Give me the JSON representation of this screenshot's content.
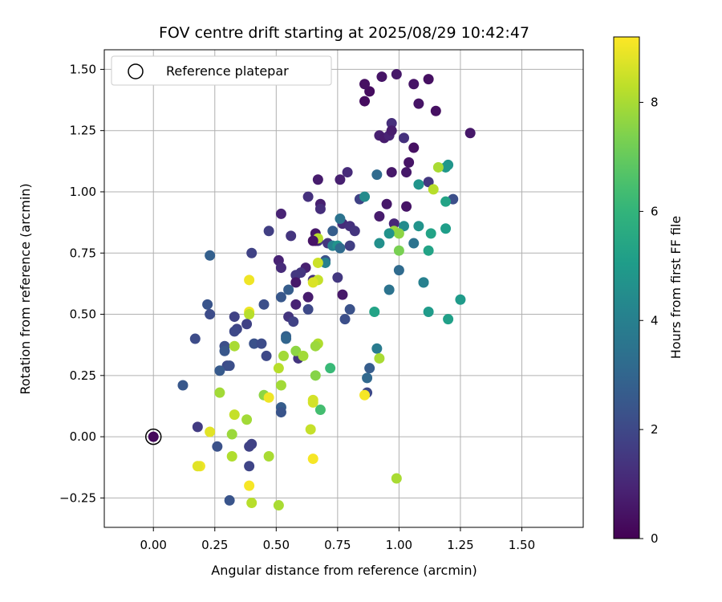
{
  "chart_data": {
    "type": "scatter",
    "title": "FOV centre drift starting at 2025/08/29 10:42:47",
    "xlabel": "Angular distance from reference (arcmin)",
    "ylabel": "Rotation from reference (arcmin)",
    "xlim": [
      -0.2,
      1.75
    ],
    "ylim": [
      -0.37,
      1.58
    ],
    "xticks": [
      0.0,
      0.25,
      0.5,
      0.75,
      1.0,
      1.25,
      1.5
    ],
    "xtick_labels": [
      "0.00",
      "0.25",
      "0.50",
      "0.75",
      "1.00",
      "1.25",
      "1.50"
    ],
    "yticks": [
      -0.25,
      0.0,
      0.25,
      0.5,
      0.75,
      1.0,
      1.25,
      1.5
    ],
    "ytick_labels": [
      "−0.25",
      "0.00",
      "0.25",
      "0.50",
      "0.75",
      "1.00",
      "1.25",
      "1.50"
    ],
    "grid": true,
    "legend": {
      "position": "top-left",
      "entries": [
        "Reference platepar"
      ]
    },
    "reference_point": {
      "x": 0.0,
      "y": 0.0
    },
    "colorbar": {
      "label": "Hours from first FF file",
      "colormap": "viridis",
      "range": [
        0,
        9.2
      ],
      "ticks": [
        0,
        2,
        4,
        6,
        8
      ],
      "tick_labels": [
        "0",
        "2",
        "4",
        "6",
        "8"
      ]
    },
    "points": [
      [
        0.0,
        0.0,
        0.2
      ],
      [
        0.88,
        1.41,
        0.3
      ],
      [
        0.86,
        1.37,
        0.3
      ],
      [
        0.86,
        1.44,
        0.4
      ],
      [
        0.93,
        1.47,
        0.5
      ],
      [
        0.99,
        1.48,
        0.6
      ],
      [
        1.06,
        1.44,
        0.5
      ],
      [
        1.12,
        1.46,
        0.4
      ],
      [
        1.08,
        1.36,
        0.5
      ],
      [
        1.15,
        1.33,
        0.4
      ],
      [
        0.97,
        1.28,
        1.2
      ],
      [
        0.92,
        1.23,
        0.8
      ],
      [
        0.94,
        1.22,
        0.7
      ],
      [
        0.96,
        1.23,
        0.9
      ],
      [
        0.97,
        1.25,
        0.7
      ],
      [
        1.02,
        1.22,
        1.3
      ],
      [
        1.06,
        1.18,
        0.4
      ],
      [
        1.29,
        1.24,
        0.6
      ],
      [
        1.04,
        1.12,
        0.5
      ],
      [
        1.03,
        1.08,
        0.6
      ],
      [
        0.97,
        1.08,
        0.6
      ],
      [
        0.91,
        1.07,
        3.2
      ],
      [
        0.79,
        1.08,
        1.1
      ],
      [
        0.76,
        1.05,
        0.8
      ],
      [
        0.67,
        1.05,
        0.7
      ],
      [
        1.12,
        1.04,
        1.5
      ],
      [
        1.2,
        1.11,
        4.8
      ],
      [
        1.19,
        1.1,
        4.9
      ],
      [
        1.22,
        0.97,
        2.2
      ],
      [
        1.08,
        1.03,
        4.8
      ],
      [
        1.14,
        1.01,
        8.2
      ],
      [
        1.16,
        1.1,
        8.0
      ],
      [
        1.19,
        0.96,
        5.3
      ],
      [
        0.84,
        0.97,
        1.8
      ],
      [
        0.86,
        0.98,
        4.4
      ],
      [
        0.68,
        0.95,
        0.8
      ],
      [
        0.68,
        0.93,
        1.2
      ],
      [
        0.63,
        0.98,
        1.3
      ],
      [
        0.52,
        0.91,
        0.9
      ],
      [
        0.92,
        0.9,
        0.7
      ],
      [
        0.95,
        0.95,
        0.6
      ],
      [
        1.03,
        0.94,
        0.5
      ],
      [
        0.98,
        0.87,
        1.0
      ],
      [
        1.02,
        0.86,
        4.4
      ],
      [
        1.08,
        0.86,
        4.7
      ],
      [
        1.13,
        0.83,
        5.3
      ],
      [
        1.19,
        0.85,
        5.1
      ],
      [
        0.98,
        0.84,
        7.8
      ],
      [
        1.0,
        0.83,
        7.6
      ],
      [
        0.96,
        0.83,
        4.7
      ],
      [
        0.77,
        0.87,
        1.1
      ],
      [
        0.76,
        0.89,
        3.5
      ],
      [
        0.8,
        0.86,
        1.3
      ],
      [
        0.82,
        0.84,
        1.4
      ],
      [
        0.73,
        0.84,
        2.7
      ],
      [
        0.66,
        0.83,
        0.6
      ],
      [
        0.67,
        0.8,
        1.4
      ],
      [
        0.66,
        0.8,
        0.7
      ],
      [
        0.67,
        0.81,
        8.2
      ],
      [
        0.71,
        0.79,
        1.4
      ],
      [
        0.65,
        0.8,
        0.5
      ],
      [
        0.56,
        0.82,
        1.4
      ],
      [
        0.47,
        0.84,
        1.7
      ],
      [
        0.4,
        0.75,
        1.8
      ],
      [
        0.23,
        0.74,
        2.8
      ],
      [
        0.92,
        0.79,
        4.6
      ],
      [
        1.06,
        0.79,
        3.5
      ],
      [
        1.12,
        0.76,
        5.3
      ],
      [
        1.0,
        0.76,
        7.3
      ],
      [
        0.73,
        0.78,
        4.0
      ],
      [
        0.75,
        0.78,
        4.7
      ],
      [
        0.76,
        0.77,
        3.2
      ],
      [
        0.8,
        0.78,
        1.7
      ],
      [
        0.7,
        0.72,
        2.3
      ],
      [
        0.7,
        0.71,
        4.0
      ],
      [
        0.67,
        0.71,
        8.5
      ],
      [
        0.62,
        0.69,
        0.8
      ],
      [
        0.51,
        0.72,
        0.9
      ],
      [
        0.52,
        0.69,
        1.1
      ],
      [
        0.6,
        0.67,
        1.4
      ],
      [
        0.58,
        0.66,
        1.5
      ],
      [
        0.58,
        0.63,
        0.6
      ],
      [
        0.65,
        0.64,
        1.3
      ],
      [
        0.67,
        0.64,
        8.4
      ],
      [
        0.65,
        0.63,
        8.7
      ],
      [
        0.39,
        0.64,
        9.0
      ],
      [
        0.75,
        0.65,
        1.5
      ],
      [
        0.77,
        0.58,
        0.6
      ],
      [
        0.55,
        0.6,
        2.7
      ],
      [
        0.52,
        0.57,
        2.5
      ],
      [
        0.63,
        0.57,
        0.7
      ],
      [
        0.58,
        0.54,
        0.9
      ],
      [
        0.63,
        0.52,
        2.0
      ],
      [
        0.45,
        0.54,
        2.2
      ],
      [
        0.33,
        0.49,
        1.8
      ],
      [
        0.39,
        0.51,
        9.0
      ],
      [
        0.39,
        0.5,
        8.2
      ],
      [
        0.55,
        0.49,
        1.4
      ],
      [
        0.57,
        0.47,
        1.8
      ],
      [
        0.8,
        0.52,
        2.3
      ],
      [
        0.78,
        0.48,
        2.2
      ],
      [
        0.9,
        0.51,
        5.3
      ],
      [
        1.1,
        0.63,
        4.2
      ],
      [
        1.1,
        0.63,
        4.0
      ],
      [
        1.12,
        0.51,
        5.0
      ],
      [
        1.2,
        0.48,
        5.2
      ],
      [
        1.25,
        0.56,
        5.0
      ],
      [
        1.0,
        0.68,
        3.2
      ],
      [
        0.96,
        0.6,
        3.5
      ],
      [
        0.22,
        0.54,
        2.4
      ],
      [
        0.23,
        0.5,
        2.1
      ],
      [
        0.38,
        0.46,
        1.8
      ],
      [
        0.34,
        0.44,
        1.9
      ],
      [
        0.33,
        0.43,
        2.0
      ],
      [
        0.17,
        0.4,
        2.1
      ],
      [
        0.41,
        0.38,
        2.3
      ],
      [
        0.44,
        0.38,
        2.1
      ],
      [
        0.46,
        0.33,
        2.0
      ],
      [
        0.29,
        0.37,
        2.2
      ],
      [
        0.29,
        0.35,
        2.5
      ],
      [
        0.54,
        0.41,
        2.8
      ],
      [
        0.54,
        0.4,
        3.0
      ],
      [
        0.59,
        0.32,
        1.4
      ],
      [
        0.53,
        0.33,
        7.9
      ],
      [
        0.58,
        0.35,
        7.6
      ],
      [
        0.61,
        0.33,
        7.9
      ],
      [
        0.67,
        0.38,
        8.1
      ],
      [
        0.66,
        0.37,
        7.8
      ],
      [
        0.33,
        0.37,
        8.0
      ],
      [
        0.91,
        0.36,
        3.8
      ],
      [
        0.92,
        0.32,
        8.0
      ],
      [
        0.88,
        0.28,
        2.7
      ],
      [
        0.87,
        0.24,
        3.1
      ],
      [
        0.3,
        0.29,
        2.0
      ],
      [
        0.31,
        0.29,
        2.2
      ],
      [
        0.27,
        0.27,
        2.6
      ],
      [
        0.12,
        0.21,
        2.5
      ],
      [
        0.51,
        0.28,
        8.2
      ],
      [
        0.72,
        0.28,
        6.2
      ],
      [
        0.66,
        0.25,
        7.5
      ],
      [
        0.52,
        0.21,
        7.9
      ],
      [
        0.27,
        0.18,
        7.9
      ],
      [
        0.45,
        0.17,
        7.6
      ],
      [
        0.47,
        0.16,
        9.0
      ],
      [
        0.65,
        0.15,
        8.6
      ],
      [
        0.65,
        0.14,
        8.6
      ],
      [
        0.68,
        0.11,
        6.4
      ],
      [
        0.87,
        0.18,
        2.0
      ],
      [
        0.86,
        0.17,
        9.1
      ],
      [
        0.52,
        0.12,
        2.7
      ],
      [
        0.52,
        0.1,
        2.4
      ],
      [
        0.33,
        0.09,
        8.4
      ],
      [
        0.38,
        0.07,
        7.9
      ],
      [
        0.64,
        0.03,
        8.4
      ],
      [
        0.18,
        0.04,
        1.6
      ],
      [
        0.23,
        0.02,
        8.8
      ],
      [
        0.32,
        0.01,
        7.8
      ],
      [
        0.4,
        -0.03,
        1.8
      ],
      [
        0.39,
        -0.04,
        1.8
      ],
      [
        0.26,
        -0.04,
        2.3
      ],
      [
        0.32,
        -0.08,
        8.1
      ],
      [
        0.47,
        -0.08,
        8.0
      ],
      [
        0.65,
        -0.09,
        9.1
      ],
      [
        0.39,
        -0.12,
        1.9
      ],
      [
        0.19,
        -0.12,
        9.0
      ],
      [
        0.18,
        -0.12,
        8.8
      ],
      [
        0.39,
        -0.2,
        9.1
      ],
      [
        0.99,
        -0.17,
        8.0
      ],
      [
        0.31,
        -0.26,
        2.4
      ],
      [
        0.4,
        -0.27,
        8.2
      ],
      [
        0.51,
        -0.28,
        8.0
      ]
    ]
  }
}
